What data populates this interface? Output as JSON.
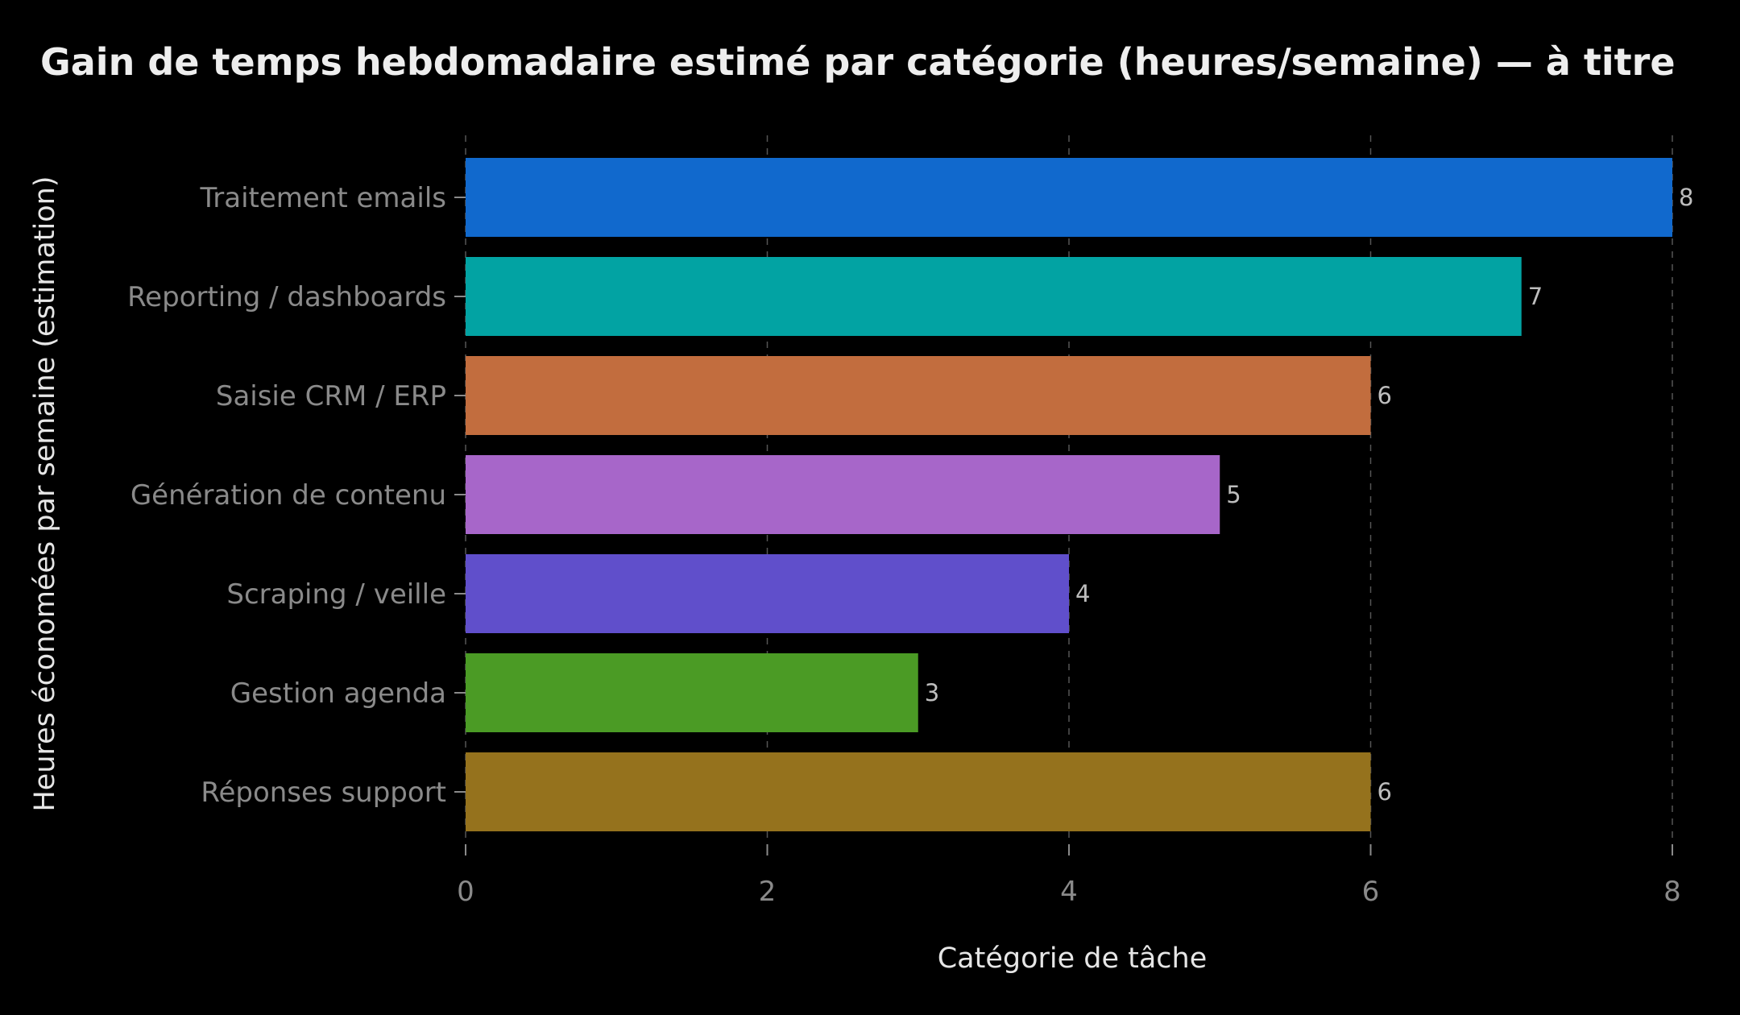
{
  "chart_data": {
    "type": "bar",
    "orientation": "horizontal",
    "title": "Gain de temps hebdomadaire estimé par catégorie (heures/semaine) — à titre",
    "xlabel": "Catégorie de tâche",
    "ylabel": "Heures économées par semaine (estimation)",
    "categories": [
      "Traitement emails",
      "Reporting / dashboards",
      "Saisie CRM / ERP",
      "Génération de contenu",
      "Scraping / veille",
      "Gestion agenda",
      "Réponses support"
    ],
    "values": [
      8,
      7,
      6,
      5,
      4,
      3,
      6
    ],
    "colors": [
      "#1169cd",
      "#02a3a3",
      "#c26d3e",
      "#a766c9",
      "#604fcb",
      "#4b9b25",
      "#95721d"
    ],
    "xlim": [
      0,
      8
    ],
    "xticks": [
      0,
      2,
      4,
      6,
      8
    ],
    "grid": true,
    "legend": "none"
  }
}
